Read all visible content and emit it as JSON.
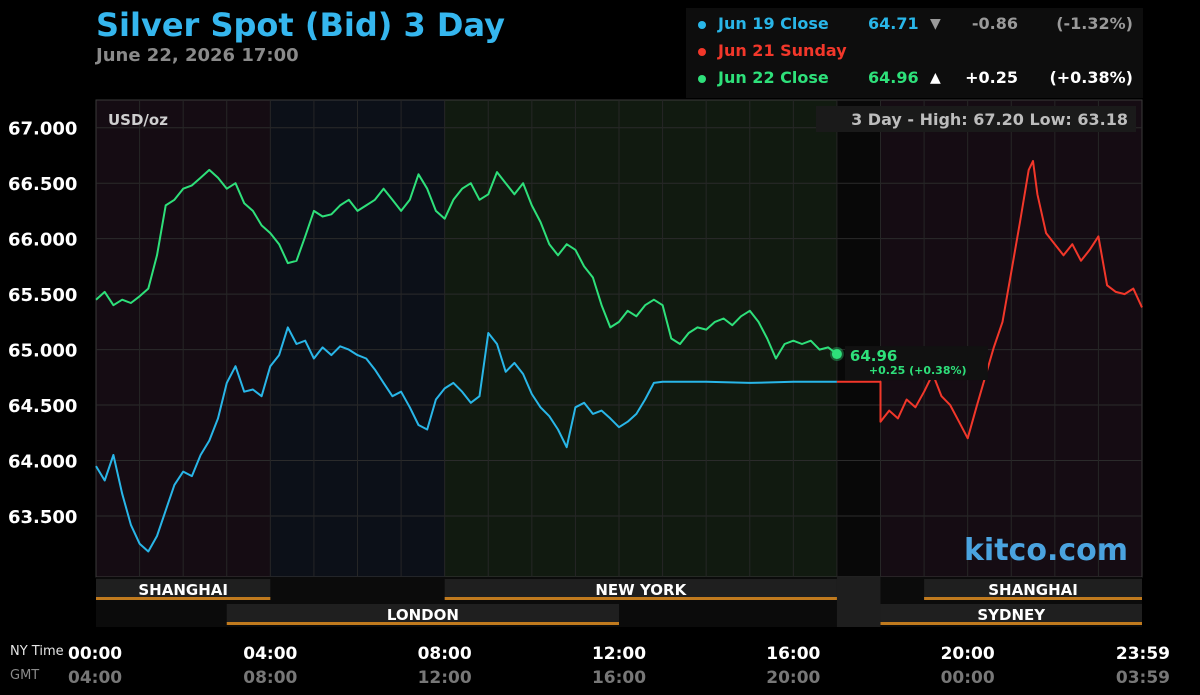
{
  "header": {
    "title": "Silver Spot (Bid) 3 Day",
    "subtitle": "June 22, 2026 17:00"
  },
  "legend": [
    {
      "label": "Jun 19 Close",
      "price": "64.71",
      "arrow": "▼",
      "change": "-0.86",
      "percent": "(-1.32%)",
      "color": "#29b6e8",
      "price_color": "#29b6e8",
      "change_color": "#9a9a9a"
    },
    {
      "label": "Jun 21 Sunday",
      "price": "",
      "arrow": "",
      "change": "",
      "percent": "",
      "color": "#f2372a",
      "price_color": "#f2372a",
      "change_color": "#f2372a"
    },
    {
      "label": "Jun 22 Close",
      "price": "64.96",
      "arrow": "▲",
      "change": "+0.25",
      "percent": "(+0.38%)",
      "color": "#2ee07a",
      "price_color": "#2ee07a",
      "change_color": "#ffffff"
    }
  ],
  "colors": {
    "jun19": "#29b6e8",
    "jun21": "#f2372a",
    "jun22": "#2ee07a",
    "session_bar": "#c07a1e",
    "watermark": "#4aa3df"
  },
  "chart_data": {
    "type": "line",
    "unit_label": "USD/oz",
    "range_label": "3 Day - High: 67.20  Low: 63.18",
    "watermark": "kitco.com",
    "ylim": [
      62.95,
      67.25
    ],
    "y_ticks": [
      "67.000",
      "66.500",
      "66.000",
      "65.500",
      "65.000",
      "64.500",
      "64.000",
      "63.500"
    ],
    "y_tick_values": [
      67.0,
      66.5,
      66.0,
      65.5,
      65.0,
      64.5,
      64.0,
      63.5
    ],
    "x_axis_hours": [
      0,
      24
    ],
    "x_ticks_ny": [
      "00:00",
      "04:00",
      "08:00",
      "12:00",
      "16:00",
      "20:00",
      "23:59"
    ],
    "x_ticks_gmt": [
      "04:00",
      "08:00",
      "12:00",
      "16:00",
      "20:00",
      "00:00",
      "03:59"
    ],
    "x_tick_hours": [
      0,
      4,
      8,
      12,
      16,
      20,
      24
    ],
    "row_label_ny": "NY Time",
    "row_label_gmt": "GMT",
    "last_value_label": "64.96",
    "last_change_label": "+0.25 (+0.38%)",
    "series": [
      {
        "name": "Jun 19 Close",
        "key": "jun19",
        "points": [
          [
            0,
            63.95
          ],
          [
            0.2,
            63.82
          ],
          [
            0.4,
            64.05
          ],
          [
            0.6,
            63.7
          ],
          [
            0.8,
            63.42
          ],
          [
            1.0,
            63.25
          ],
          [
            1.2,
            63.18
          ],
          [
            1.4,
            63.32
          ],
          [
            1.6,
            63.55
          ],
          [
            1.8,
            63.78
          ],
          [
            2.0,
            63.9
          ],
          [
            2.2,
            63.86
          ],
          [
            2.4,
            64.05
          ],
          [
            2.6,
            64.18
          ],
          [
            2.8,
            64.38
          ],
          [
            3.0,
            64.7
          ],
          [
            3.2,
            64.85
          ],
          [
            3.4,
            64.62
          ],
          [
            3.6,
            64.64
          ],
          [
            3.8,
            64.58
          ],
          [
            4.0,
            64.85
          ],
          [
            4.2,
            64.95
          ],
          [
            4.4,
            65.2
          ],
          [
            4.6,
            65.05
          ],
          [
            4.8,
            65.08
          ],
          [
            5.0,
            64.92
          ],
          [
            5.2,
            65.02
          ],
          [
            5.4,
            64.95
          ],
          [
            5.6,
            65.03
          ],
          [
            5.8,
            65.0
          ],
          [
            6.0,
            64.95
          ],
          [
            6.2,
            64.92
          ],
          [
            6.4,
            64.82
          ],
          [
            6.6,
            64.7
          ],
          [
            6.8,
            64.58
          ],
          [
            7.0,
            64.62
          ],
          [
            7.2,
            64.48
          ],
          [
            7.4,
            64.32
          ],
          [
            7.6,
            64.28
          ],
          [
            7.8,
            64.55
          ],
          [
            8.0,
            64.65
          ],
          [
            8.2,
            64.7
          ],
          [
            8.4,
            64.62
          ],
          [
            8.6,
            64.52
          ],
          [
            8.8,
            64.58
          ],
          [
            9.0,
            65.15
          ],
          [
            9.2,
            65.05
          ],
          [
            9.4,
            64.8
          ],
          [
            9.6,
            64.88
          ],
          [
            9.8,
            64.78
          ],
          [
            10.0,
            64.6
          ],
          [
            10.2,
            64.48
          ],
          [
            10.4,
            64.4
          ],
          [
            10.6,
            64.28
          ],
          [
            10.8,
            64.12
          ],
          [
            11.0,
            64.48
          ],
          [
            11.2,
            64.52
          ],
          [
            11.4,
            64.42
          ],
          [
            11.6,
            64.45
          ],
          [
            11.8,
            64.38
          ],
          [
            12.0,
            64.3
          ],
          [
            12.2,
            64.35
          ],
          [
            12.4,
            64.42
          ],
          [
            12.6,
            64.55
          ],
          [
            12.8,
            64.7
          ],
          [
            13.0,
            64.71
          ],
          [
            14.0,
            64.71
          ],
          [
            15.0,
            64.7
          ],
          [
            16.0,
            64.71
          ],
          [
            17.0,
            64.71
          ]
        ]
      },
      {
        "name": "Jun 21 Sunday",
        "key": "jun21",
        "points": [
          [
            17.0,
            64.71
          ],
          [
            18.0,
            64.71
          ],
          [
            18.0,
            64.35
          ],
          [
            18.2,
            64.45
          ],
          [
            18.4,
            64.38
          ],
          [
            18.6,
            64.55
          ],
          [
            18.8,
            64.48
          ],
          [
            19.0,
            64.62
          ],
          [
            19.2,
            64.78
          ],
          [
            19.4,
            64.58
          ],
          [
            19.6,
            64.5
          ],
          [
            19.8,
            64.35
          ],
          [
            20.0,
            64.2
          ],
          [
            20.2,
            64.48
          ],
          [
            20.4,
            64.75
          ],
          [
            20.6,
            65.02
          ],
          [
            20.8,
            65.25
          ],
          [
            21.0,
            65.7
          ],
          [
            21.2,
            66.15
          ],
          [
            21.4,
            66.62
          ],
          [
            21.5,
            66.7
          ],
          [
            21.6,
            66.4
          ],
          [
            21.8,
            66.05
          ],
          [
            22.0,
            65.95
          ],
          [
            22.2,
            65.85
          ],
          [
            22.4,
            65.95
          ],
          [
            22.6,
            65.8
          ],
          [
            22.8,
            65.9
          ],
          [
            23.0,
            66.02
          ],
          [
            23.2,
            65.58
          ],
          [
            23.4,
            65.52
          ],
          [
            23.6,
            65.5
          ],
          [
            23.8,
            65.55
          ],
          [
            24.0,
            65.38
          ]
        ]
      },
      {
        "name": "Jun 22 Close",
        "key": "jun22",
        "points": [
          [
            0,
            65.45
          ],
          [
            0.2,
            65.52
          ],
          [
            0.4,
            65.4
          ],
          [
            0.6,
            65.45
          ],
          [
            0.8,
            65.42
          ],
          [
            1.0,
            65.48
          ],
          [
            1.2,
            65.55
          ],
          [
            1.4,
            65.85
          ],
          [
            1.6,
            66.3
          ],
          [
            1.8,
            66.35
          ],
          [
            2.0,
            66.45
          ],
          [
            2.2,
            66.48
          ],
          [
            2.4,
            66.55
          ],
          [
            2.6,
            66.62
          ],
          [
            2.8,
            66.55
          ],
          [
            3.0,
            66.45
          ],
          [
            3.2,
            66.5
          ],
          [
            3.4,
            66.32
          ],
          [
            3.6,
            66.25
          ],
          [
            3.8,
            66.12
          ],
          [
            4.0,
            66.05
          ],
          [
            4.2,
            65.95
          ],
          [
            4.4,
            65.78
          ],
          [
            4.6,
            65.8
          ],
          [
            4.8,
            66.02
          ],
          [
            5.0,
            66.25
          ],
          [
            5.2,
            66.2
          ],
          [
            5.4,
            66.22
          ],
          [
            5.6,
            66.3
          ],
          [
            5.8,
            66.35
          ],
          [
            6.0,
            66.25
          ],
          [
            6.2,
            66.3
          ],
          [
            6.4,
            66.35
          ],
          [
            6.6,
            66.45
          ],
          [
            6.8,
            66.35
          ],
          [
            7.0,
            66.25
          ],
          [
            7.2,
            66.35
          ],
          [
            7.4,
            66.58
          ],
          [
            7.6,
            66.45
          ],
          [
            7.8,
            66.25
          ],
          [
            8.0,
            66.18
          ],
          [
            8.2,
            66.35
          ],
          [
            8.4,
            66.45
          ],
          [
            8.6,
            66.5
          ],
          [
            8.8,
            66.35
          ],
          [
            9.0,
            66.4
          ],
          [
            9.2,
            66.6
          ],
          [
            9.4,
            66.5
          ],
          [
            9.6,
            66.4
          ],
          [
            9.8,
            66.5
          ],
          [
            10.0,
            66.3
          ],
          [
            10.2,
            66.15
          ],
          [
            10.4,
            65.95
          ],
          [
            10.6,
            65.85
          ],
          [
            10.8,
            65.95
          ],
          [
            11.0,
            65.9
          ],
          [
            11.2,
            65.75
          ],
          [
            11.4,
            65.65
          ],
          [
            11.6,
            65.4
          ],
          [
            11.8,
            65.2
          ],
          [
            12.0,
            65.25
          ],
          [
            12.2,
            65.35
          ],
          [
            12.4,
            65.3
          ],
          [
            12.6,
            65.4
          ],
          [
            12.8,
            65.45
          ],
          [
            13.0,
            65.4
          ],
          [
            13.2,
            65.1
          ],
          [
            13.4,
            65.05
          ],
          [
            13.6,
            65.15
          ],
          [
            13.8,
            65.2
          ],
          [
            14.0,
            65.18
          ],
          [
            14.2,
            65.25
          ],
          [
            14.4,
            65.28
          ],
          [
            14.6,
            65.22
          ],
          [
            14.8,
            65.3
          ],
          [
            15.0,
            65.35
          ],
          [
            15.2,
            65.25
          ],
          [
            15.4,
            65.1
          ],
          [
            15.6,
            64.92
          ],
          [
            15.8,
            65.05
          ],
          [
            16.0,
            65.08
          ],
          [
            16.2,
            65.05
          ],
          [
            16.4,
            65.08
          ],
          [
            16.6,
            65.0
          ],
          [
            16.8,
            65.02
          ],
          [
            17.0,
            64.96
          ]
        ]
      }
    ],
    "sessions": [
      {
        "name": "SHANGHAI",
        "start": 0,
        "end": 4,
        "row": 1
      },
      {
        "name": "NEW YORK",
        "start": 8,
        "end": 17,
        "row": 1
      },
      {
        "name": "SHANGHAI",
        "start": 19,
        "end": 24,
        "row": 1
      },
      {
        "name": "LONDON",
        "start": 3,
        "end": 12,
        "row": 2
      },
      {
        "name": "SYDNEY",
        "start": 18,
        "end": 24,
        "row": 2
      }
    ],
    "grid": true
  }
}
